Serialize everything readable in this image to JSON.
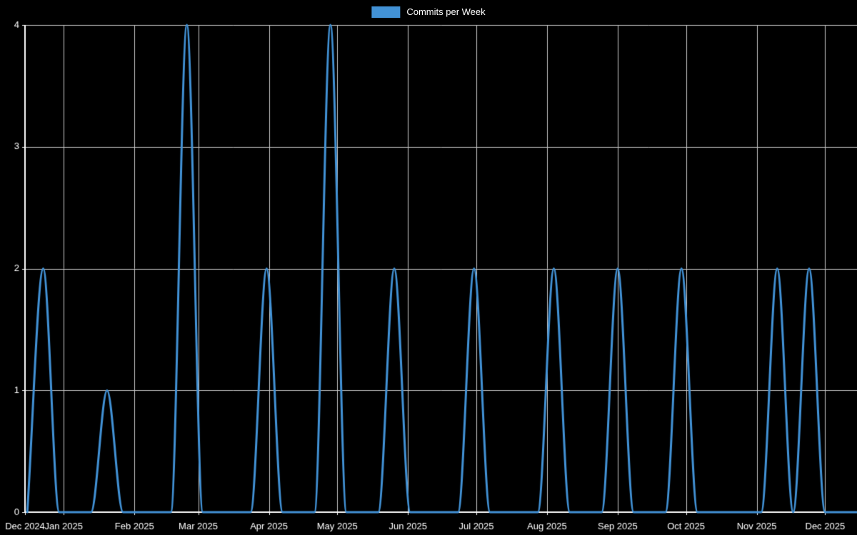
{
  "chart_data": {
    "type": "line",
    "title": "",
    "xlabel": "",
    "ylabel": "",
    "legend": {
      "label": "Commits per Week",
      "position": "top-center"
    },
    "colors": {
      "background": "#000000",
      "line": "#4292d6",
      "grid": "#c8c8c8",
      "axis": "#ffffff",
      "text": "#ffffff"
    },
    "x_domain": [
      "2024-12-15",
      "2025-12-15"
    ],
    "y_domain": [
      0,
      4
    ],
    "y_ticks": [
      0,
      1,
      2,
      3,
      4
    ],
    "x_ticks": [
      {
        "date": "2024-12-15",
        "label": "Dec 2024"
      },
      {
        "date": "2025-01-01",
        "label": "Jan 2025"
      },
      {
        "date": "2025-02-01",
        "label": "Feb 2025"
      },
      {
        "date": "2025-03-01",
        "label": "Mar 2025"
      },
      {
        "date": "2025-04-01",
        "label": "Apr 2025"
      },
      {
        "date": "2025-05-01",
        "label": "May 2025"
      },
      {
        "date": "2025-06-01",
        "label": "Jun 2025"
      },
      {
        "date": "2025-07-01",
        "label": "Jul 2025"
      },
      {
        "date": "2025-08-01",
        "label": "Aug 2025"
      },
      {
        "date": "2025-09-01",
        "label": "Sep 2025"
      },
      {
        "date": "2025-10-01",
        "label": "Oct 2025"
      },
      {
        "date": "2025-11-01",
        "label": "Nov 2025"
      },
      {
        "date": "2025-12-01",
        "label": "Dec 2025"
      }
    ],
    "series": [
      {
        "name": "Commits per Week",
        "points": [
          [
            "2024-12-16",
            0
          ],
          [
            "2024-12-23",
            2
          ],
          [
            "2024-12-30",
            0
          ],
          [
            "2025-01-06",
            0
          ],
          [
            "2025-01-13",
            0
          ],
          [
            "2025-01-20",
            1
          ],
          [
            "2025-01-27",
            0
          ],
          [
            "2025-02-03",
            0
          ],
          [
            "2025-02-10",
            0
          ],
          [
            "2025-02-17",
            0
          ],
          [
            "2025-02-24",
            4
          ],
          [
            "2025-03-03",
            0
          ],
          [
            "2025-03-10",
            0
          ],
          [
            "2025-03-17",
            0
          ],
          [
            "2025-03-24",
            0
          ],
          [
            "2025-03-31",
            2
          ],
          [
            "2025-04-07",
            0
          ],
          [
            "2025-04-14",
            0
          ],
          [
            "2025-04-21",
            0
          ],
          [
            "2025-04-28",
            4
          ],
          [
            "2025-05-05",
            0
          ],
          [
            "2025-05-12",
            0
          ],
          [
            "2025-05-19",
            0
          ],
          [
            "2025-05-26",
            2
          ],
          [
            "2025-06-02",
            0
          ],
          [
            "2025-06-09",
            0
          ],
          [
            "2025-06-16",
            0
          ],
          [
            "2025-06-23",
            0
          ],
          [
            "2025-06-30",
            2
          ],
          [
            "2025-07-07",
            0
          ],
          [
            "2025-07-14",
            0
          ],
          [
            "2025-07-21",
            0
          ],
          [
            "2025-07-28",
            0
          ],
          [
            "2025-08-04",
            2
          ],
          [
            "2025-08-11",
            0
          ],
          [
            "2025-08-18",
            0
          ],
          [
            "2025-08-25",
            0
          ],
          [
            "2025-09-01",
            2
          ],
          [
            "2025-09-08",
            0
          ],
          [
            "2025-09-15",
            0
          ],
          [
            "2025-09-22",
            0
          ],
          [
            "2025-09-29",
            2
          ],
          [
            "2025-10-06",
            0
          ],
          [
            "2025-10-13",
            0
          ],
          [
            "2025-10-20",
            0
          ],
          [
            "2025-10-27",
            0
          ],
          [
            "2025-11-03",
            0
          ],
          [
            "2025-11-10",
            2
          ],
          [
            "2025-11-17",
            0
          ],
          [
            "2025-11-24",
            2
          ],
          [
            "2025-12-01",
            0
          ],
          [
            "2025-12-08",
            0
          ],
          [
            "2025-12-15",
            0
          ]
        ]
      }
    ]
  }
}
